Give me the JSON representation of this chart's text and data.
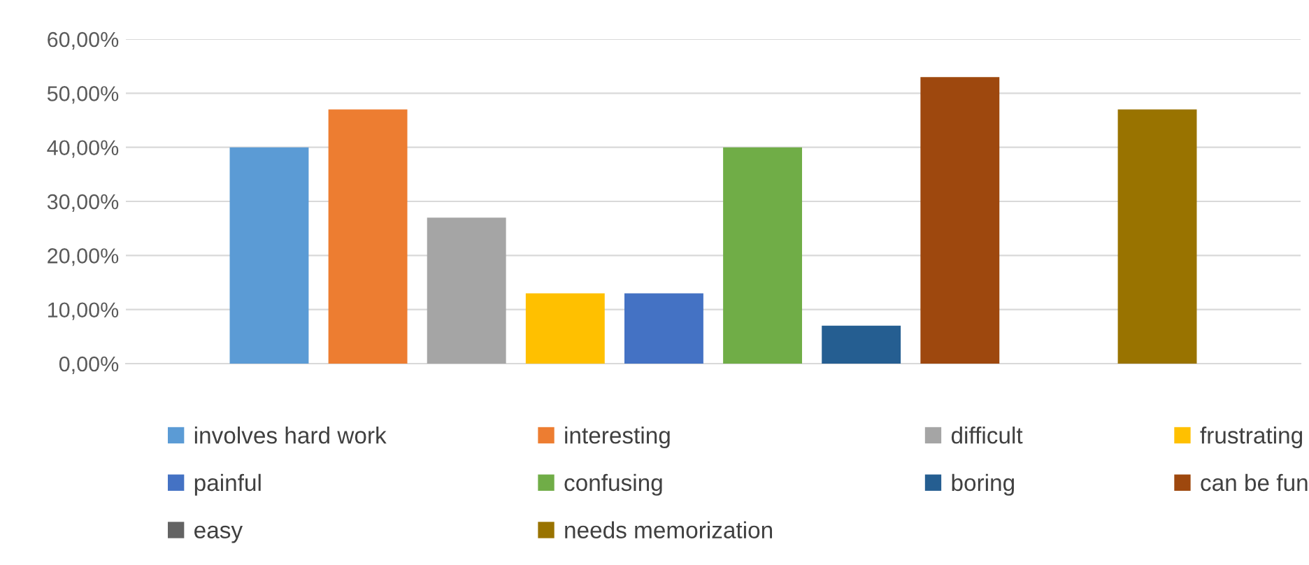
{
  "chart_data": {
    "type": "bar",
    "categories": [
      null
    ],
    "series": [
      {
        "name": "involves hard work",
        "color": "#5b9bd5",
        "values": [
          40
        ]
      },
      {
        "name": "interesting",
        "color": "#ed7d31",
        "values": [
          47
        ]
      },
      {
        "name": "difficult",
        "color": "#a5a5a5",
        "values": [
          27
        ]
      },
      {
        "name": "frustrating",
        "color": "#ffc000",
        "values": [
          13
        ]
      },
      {
        "name": "painful",
        "color": "#4472c4",
        "values": [
          13
        ]
      },
      {
        "name": "confusing",
        "color": "#70ad47",
        "values": [
          40
        ]
      },
      {
        "name": "boring",
        "color": "#255e91",
        "values": [
          7
        ]
      },
      {
        "name": "can be fun",
        "color": "#9e480e",
        "values": [
          53
        ]
      },
      {
        "name": "easy",
        "color": "#636363",
        "values": [
          0
        ]
      },
      {
        "name": "needs memorization",
        "color": "#997300",
        "values": [
          47
        ]
      }
    ],
    "ylim": [
      0,
      60
    ],
    "yticks": [
      {
        "value": 0,
        "label": "0,00%"
      },
      {
        "value": 10,
        "label": "10,00%"
      },
      {
        "value": 20,
        "label": "20,00%"
      },
      {
        "value": 30,
        "label": "30,00%"
      },
      {
        "value": 40,
        "label": "40,00%"
      },
      {
        "value": 50,
        "label": "50,00%"
      },
      {
        "value": 60,
        "label": "60,00%"
      }
    ],
    "grid": "y",
    "legend": "bottom"
  }
}
